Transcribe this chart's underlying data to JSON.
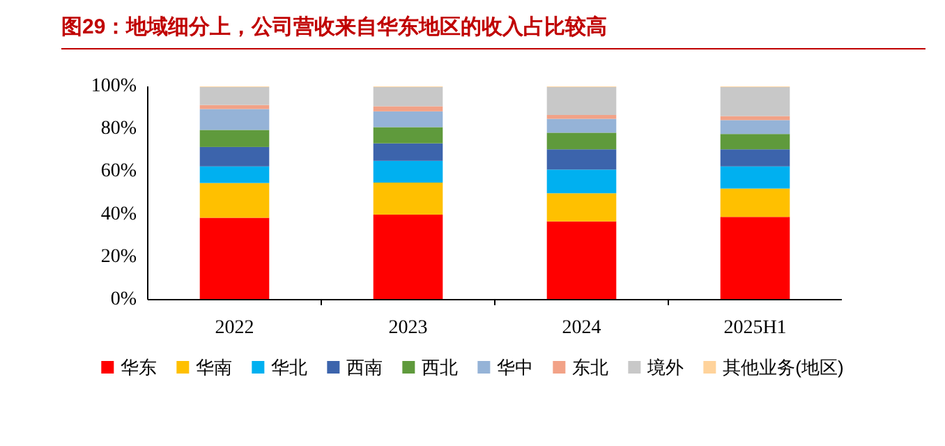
{
  "chart_data": {
    "type": "bar",
    "title": "图29：地域细分上，公司营收来自华东地区的收入占比较高",
    "categories": [
      "2022",
      "2023",
      "2024",
      "2025H1"
    ],
    "stacked": true,
    "series": [
      {
        "name": "华东",
        "color": "#ff0000",
        "values": [
          0.384,
          0.399,
          0.367,
          0.388
        ]
      },
      {
        "name": "华南",
        "color": "#ffc000",
        "values": [
          0.163,
          0.15,
          0.132,
          0.133
        ]
      },
      {
        "name": "华北",
        "color": "#00b0f0",
        "values": [
          0.078,
          0.102,
          0.111,
          0.104
        ]
      },
      {
        "name": "西南",
        "color": "#3c64ac",
        "values": [
          0.091,
          0.082,
          0.095,
          0.08
        ]
      },
      {
        "name": "西北",
        "color": "#5f9a3c",
        "values": [
          0.08,
          0.076,
          0.078,
          0.072
        ]
      },
      {
        "name": "华中",
        "color": "#95b3d7",
        "values": [
          0.098,
          0.074,
          0.065,
          0.065
        ]
      },
      {
        "name": "东北",
        "color": "#f2a287",
        "values": [
          0.019,
          0.024,
          0.018,
          0.019
        ]
      },
      {
        "name": "境外",
        "color": "#c8c8c8",
        "values": [
          0.084,
          0.09,
          0.131,
          0.136
        ]
      },
      {
        "name": "其他业务(地区)",
        "color": "#ffd39b",
        "values": [
          0.003,
          0.003,
          0.003,
          0.003
        ]
      }
    ],
    "ylim": [
      0,
      1
    ],
    "yticks": [
      {
        "value": 0,
        "label": "0%"
      },
      {
        "value": 0.2,
        "label": "20%"
      },
      {
        "value": 0.4,
        "label": "40%"
      },
      {
        "value": 0.6,
        "label": "60%"
      },
      {
        "value": 0.8,
        "label": "80%"
      },
      {
        "value": 1,
        "label": "100%"
      }
    ],
    "grid": false,
    "legend": "bottom"
  }
}
